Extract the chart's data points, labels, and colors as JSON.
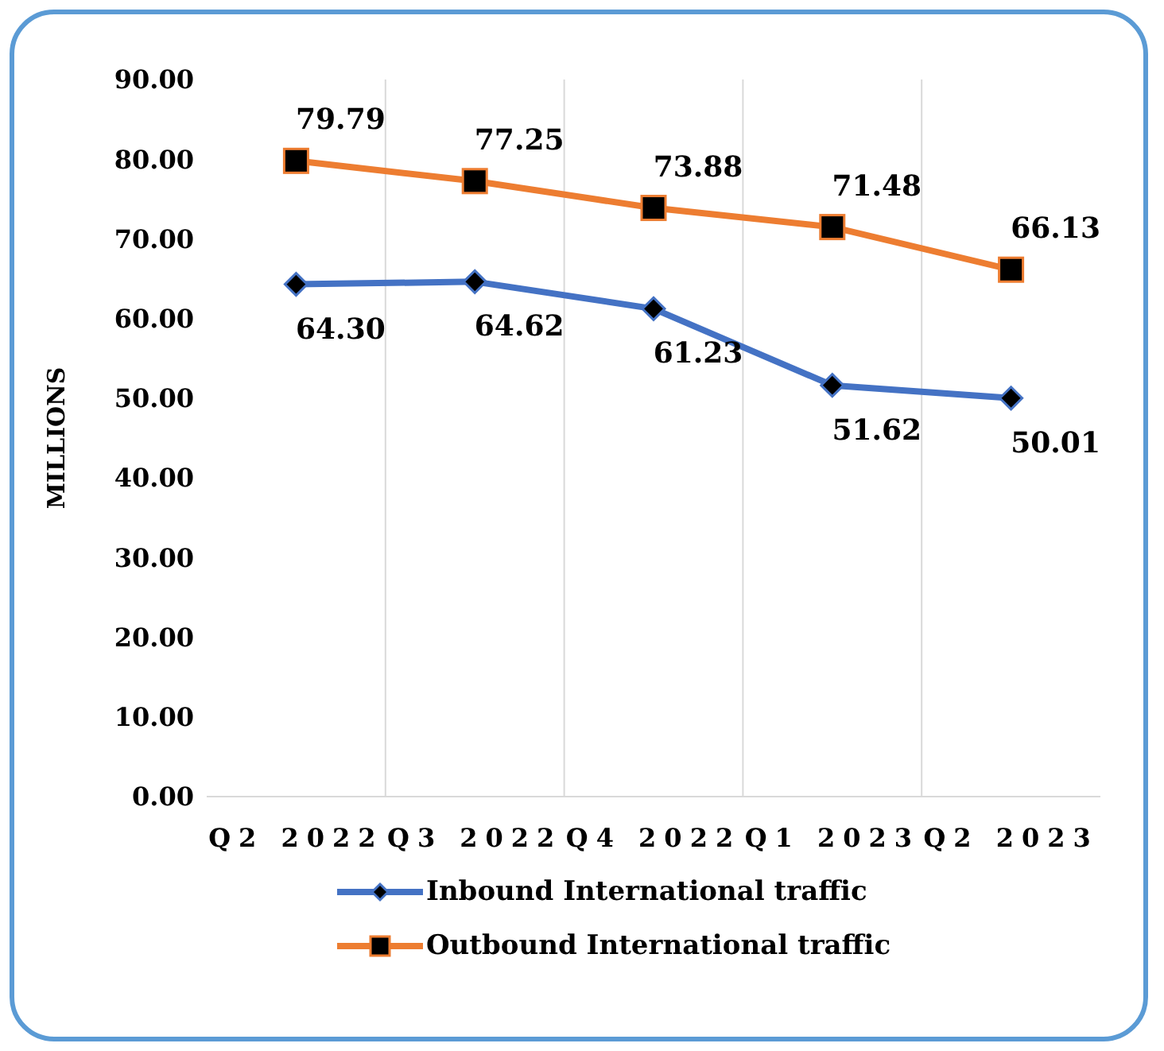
{
  "chart_data": {
    "type": "line",
    "ylabel": "MILLIONS",
    "categories": [
      "Q2 2022",
      "Q3 2022",
      "Q4 2022",
      "Q1 2023",
      "Q2 2023"
    ],
    "series": [
      {
        "name": "Inbound International traffic",
        "color": "#4472c4",
        "marker": "diamond",
        "values": [
          64.3,
          64.62,
          61.23,
          51.62,
          50.01
        ],
        "value_labels": [
          "64.30",
          "64.62",
          "61.23",
          "51.62",
          "50.01"
        ]
      },
      {
        "name": "Outbound International traffic",
        "color": "#ed7d31",
        "marker": "square",
        "values": [
          79.79,
          77.25,
          73.88,
          71.48,
          66.13
        ],
        "value_labels": [
          "79.79",
          "77.25",
          "73.88",
          "71.48",
          "66.13"
        ]
      }
    ],
    "ylim": [
      0,
      90
    ],
    "yticks": [
      {
        "value": 0,
        "label": "0.00"
      },
      {
        "value": 10,
        "label": "10.00"
      },
      {
        "value": 20,
        "label": "20.00"
      },
      {
        "value": 30,
        "label": "30.00"
      },
      {
        "value": 40,
        "label": "40.00"
      },
      {
        "value": 50,
        "label": "50.00"
      },
      {
        "value": 60,
        "label": "60.00"
      },
      {
        "value": 70,
        "label": "70.00"
      },
      {
        "value": 80,
        "label": "80.00"
      },
      {
        "value": 90,
        "label": "90.00"
      }
    ],
    "grid": "x",
    "legend": "bottom",
    "line_style": "solid"
  }
}
